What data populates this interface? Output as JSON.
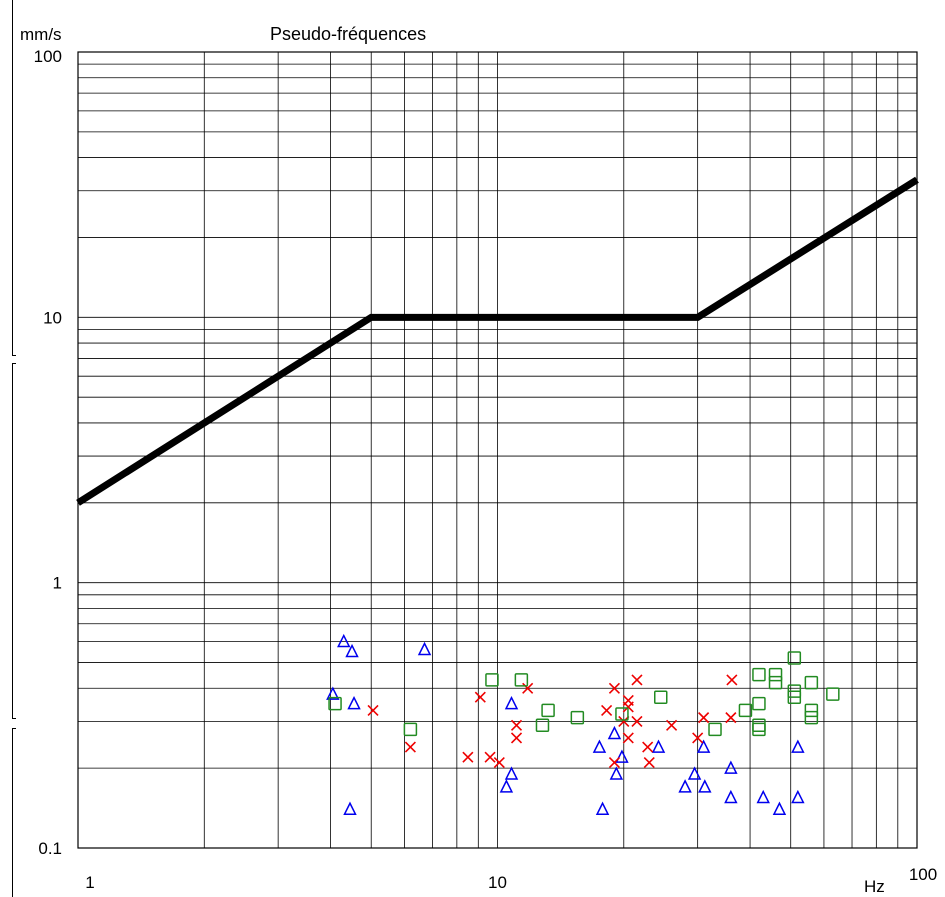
{
  "chart_data": {
    "type": "scatter",
    "title": "Pseudo-fréquences",
    "xlabel": "Hz",
    "ylabel": "mm/s",
    "x_scale": "log",
    "y_scale": "log",
    "xlim": [
      1,
      100
    ],
    "ylim": [
      0.1,
      100
    ],
    "x_ticks": [
      {
        "value": 1,
        "label": "1"
      },
      {
        "value": 10,
        "label": "10"
      },
      {
        "value": 100,
        "label": "100"
      }
    ],
    "y_ticks": [
      {
        "value": 0.1,
        "label": "0.1"
      },
      {
        "value": 1,
        "label": "1"
      },
      {
        "value": 10,
        "label": "10"
      },
      {
        "value": 100,
        "label": "100"
      }
    ],
    "grid": true,
    "limit_curve": {
      "color": "#000000",
      "points": [
        [
          1,
          2
        ],
        [
          5,
          10
        ],
        [
          30,
          10
        ],
        [
          100,
          33
        ]
      ]
    },
    "series": [
      {
        "marker": "triangle",
        "color": "#0000ee",
        "points": [
          [
            4.05,
            0.38
          ],
          [
            4.3,
            0.6
          ],
          [
            4.5,
            0.55
          ],
          [
            4.55,
            0.35
          ],
          [
            4.45,
            0.14
          ],
          [
            6.7,
            0.56
          ],
          [
            10.5,
            0.17
          ],
          [
            10.8,
            0.19
          ],
          [
            10.8,
            0.35
          ],
          [
            17.5,
            0.24
          ],
          [
            17.8,
            0.14
          ],
          [
            19,
            0.27
          ],
          [
            19.2,
            0.19
          ],
          [
            19.8,
            0.22
          ],
          [
            24.2,
            0.24
          ],
          [
            28,
            0.17
          ],
          [
            29.5,
            0.19
          ],
          [
            31,
            0.24
          ],
          [
            31.2,
            0.17
          ],
          [
            36,
            0.2
          ],
          [
            36,
            0.155
          ],
          [
            43,
            0.155
          ],
          [
            47,
            0.14
          ],
          [
            52,
            0.24
          ],
          [
            52,
            0.155
          ]
        ]
      },
      {
        "marker": "cross",
        "color": "#ee0000",
        "points": [
          [
            5.05,
            0.33
          ],
          [
            6.2,
            0.24
          ],
          [
            8.5,
            0.22
          ],
          [
            9.1,
            0.37
          ],
          [
            9.6,
            0.22
          ],
          [
            10.1,
            0.21
          ],
          [
            11.1,
            0.26
          ],
          [
            11.1,
            0.29
          ],
          [
            11.8,
            0.4
          ],
          [
            18.2,
            0.33
          ],
          [
            19,
            0.4
          ],
          [
            19,
            0.21
          ],
          [
            20,
            0.3
          ],
          [
            20.5,
            0.36
          ],
          [
            20.5,
            0.34
          ],
          [
            20.5,
            0.26
          ],
          [
            21.5,
            0.43
          ],
          [
            21.5,
            0.3
          ],
          [
            22.8,
            0.24
          ],
          [
            23,
            0.21
          ],
          [
            26,
            0.29
          ],
          [
            30,
            0.26
          ],
          [
            31,
            0.31
          ],
          [
            36,
            0.31
          ],
          [
            36.2,
            0.43
          ]
        ]
      },
      {
        "marker": "square",
        "color": "#228b22",
        "points": [
          [
            4.1,
            0.35
          ],
          [
            6.2,
            0.28
          ],
          [
            9.7,
            0.43
          ],
          [
            11.4,
            0.43
          ],
          [
            12.8,
            0.29
          ],
          [
            13.2,
            0.33
          ],
          [
            15.5,
            0.31
          ],
          [
            19.8,
            0.32
          ],
          [
            24.5,
            0.37
          ],
          [
            33,
            0.28
          ],
          [
            39,
            0.33
          ],
          [
            42,
            0.45
          ],
          [
            42,
            0.35
          ],
          [
            42,
            0.29
          ],
          [
            42,
            0.28
          ],
          [
            46,
            0.45
          ],
          [
            46,
            0.42
          ],
          [
            51,
            0.52
          ],
          [
            51,
            0.39
          ],
          [
            51,
            0.37
          ],
          [
            56,
            0.42
          ],
          [
            56,
            0.33
          ],
          [
            56,
            0.31
          ],
          [
            63,
            0.38
          ]
        ]
      }
    ]
  }
}
